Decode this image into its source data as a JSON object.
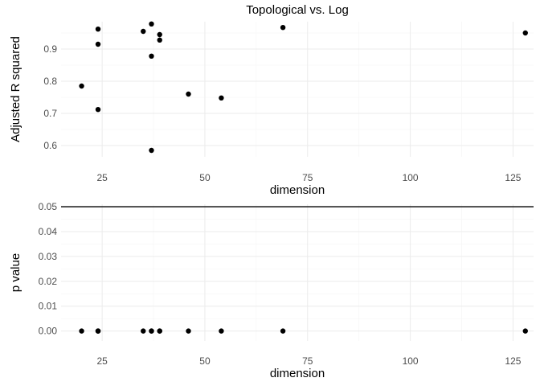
{
  "chart_data": [
    {
      "type": "scatter",
      "title": "Topological vs. Log",
      "xlabel": "dimension",
      "ylabel": "Adjusted R squared",
      "xlim": [
        15,
        130
      ],
      "ylim": [
        0.565,
        0.985
      ],
      "x_ticks": [
        25,
        50,
        75,
        100,
        125
      ],
      "x_tick_labels": [
        "25",
        "50",
        "75",
        "100",
        "125"
      ],
      "y_ticks": [
        0.6,
        0.7,
        0.8,
        0.9
      ],
      "y_tick_labels": [
        "0.6",
        "0.7",
        "0.8",
        "0.9"
      ],
      "grid": true,
      "points": [
        {
          "x": 20,
          "y": 0.785
        },
        {
          "x": 24,
          "y": 0.962
        },
        {
          "x": 24,
          "y": 0.915
        },
        {
          "x": 24,
          "y": 0.712
        },
        {
          "x": 35,
          "y": 0.955
        },
        {
          "x": 37,
          "y": 0.978
        },
        {
          "x": 37,
          "y": 0.878
        },
        {
          "x": 37,
          "y": 0.585
        },
        {
          "x": 39,
          "y": 0.945
        },
        {
          "x": 39,
          "y": 0.928
        },
        {
          "x": 46,
          "y": 0.76
        },
        {
          "x": 54,
          "y": 0.748
        },
        {
          "x": 69,
          "y": 0.967
        },
        {
          "x": 128,
          "y": 0.95
        }
      ]
    },
    {
      "type": "scatter",
      "title": "",
      "xlabel": "dimension",
      "ylabel": "p value",
      "xlim": [
        15,
        130
      ],
      "ylim": [
        -0.004,
        0.051
      ],
      "x_ticks": [
        25,
        50,
        75,
        100,
        125
      ],
      "x_tick_labels": [
        "25",
        "50",
        "75",
        "100",
        "125"
      ],
      "y_ticks": [
        0.0,
        0.01,
        0.02,
        0.03,
        0.04,
        0.05
      ],
      "y_tick_labels": [
        "0.00",
        "0.01",
        "0.02",
        "0.03",
        "0.04",
        "0.05"
      ],
      "grid": true,
      "reference_line": {
        "y": 0.05
      },
      "points": [
        {
          "x": 20,
          "y": 0.0
        },
        {
          "x": 24,
          "y": 0.0
        },
        {
          "x": 24,
          "y": 0.0
        },
        {
          "x": 24,
          "y": 0.0
        },
        {
          "x": 35,
          "y": 0.0
        },
        {
          "x": 37,
          "y": 0.0
        },
        {
          "x": 37,
          "y": 0.0
        },
        {
          "x": 39,
          "y": 0.0
        },
        {
          "x": 39,
          "y": 0.0
        },
        {
          "x": 46,
          "y": 0.0
        },
        {
          "x": 54,
          "y": 0.0
        },
        {
          "x": 69,
          "y": 0.0
        },
        {
          "x": 128,
          "y": 0.0
        }
      ]
    }
  ]
}
